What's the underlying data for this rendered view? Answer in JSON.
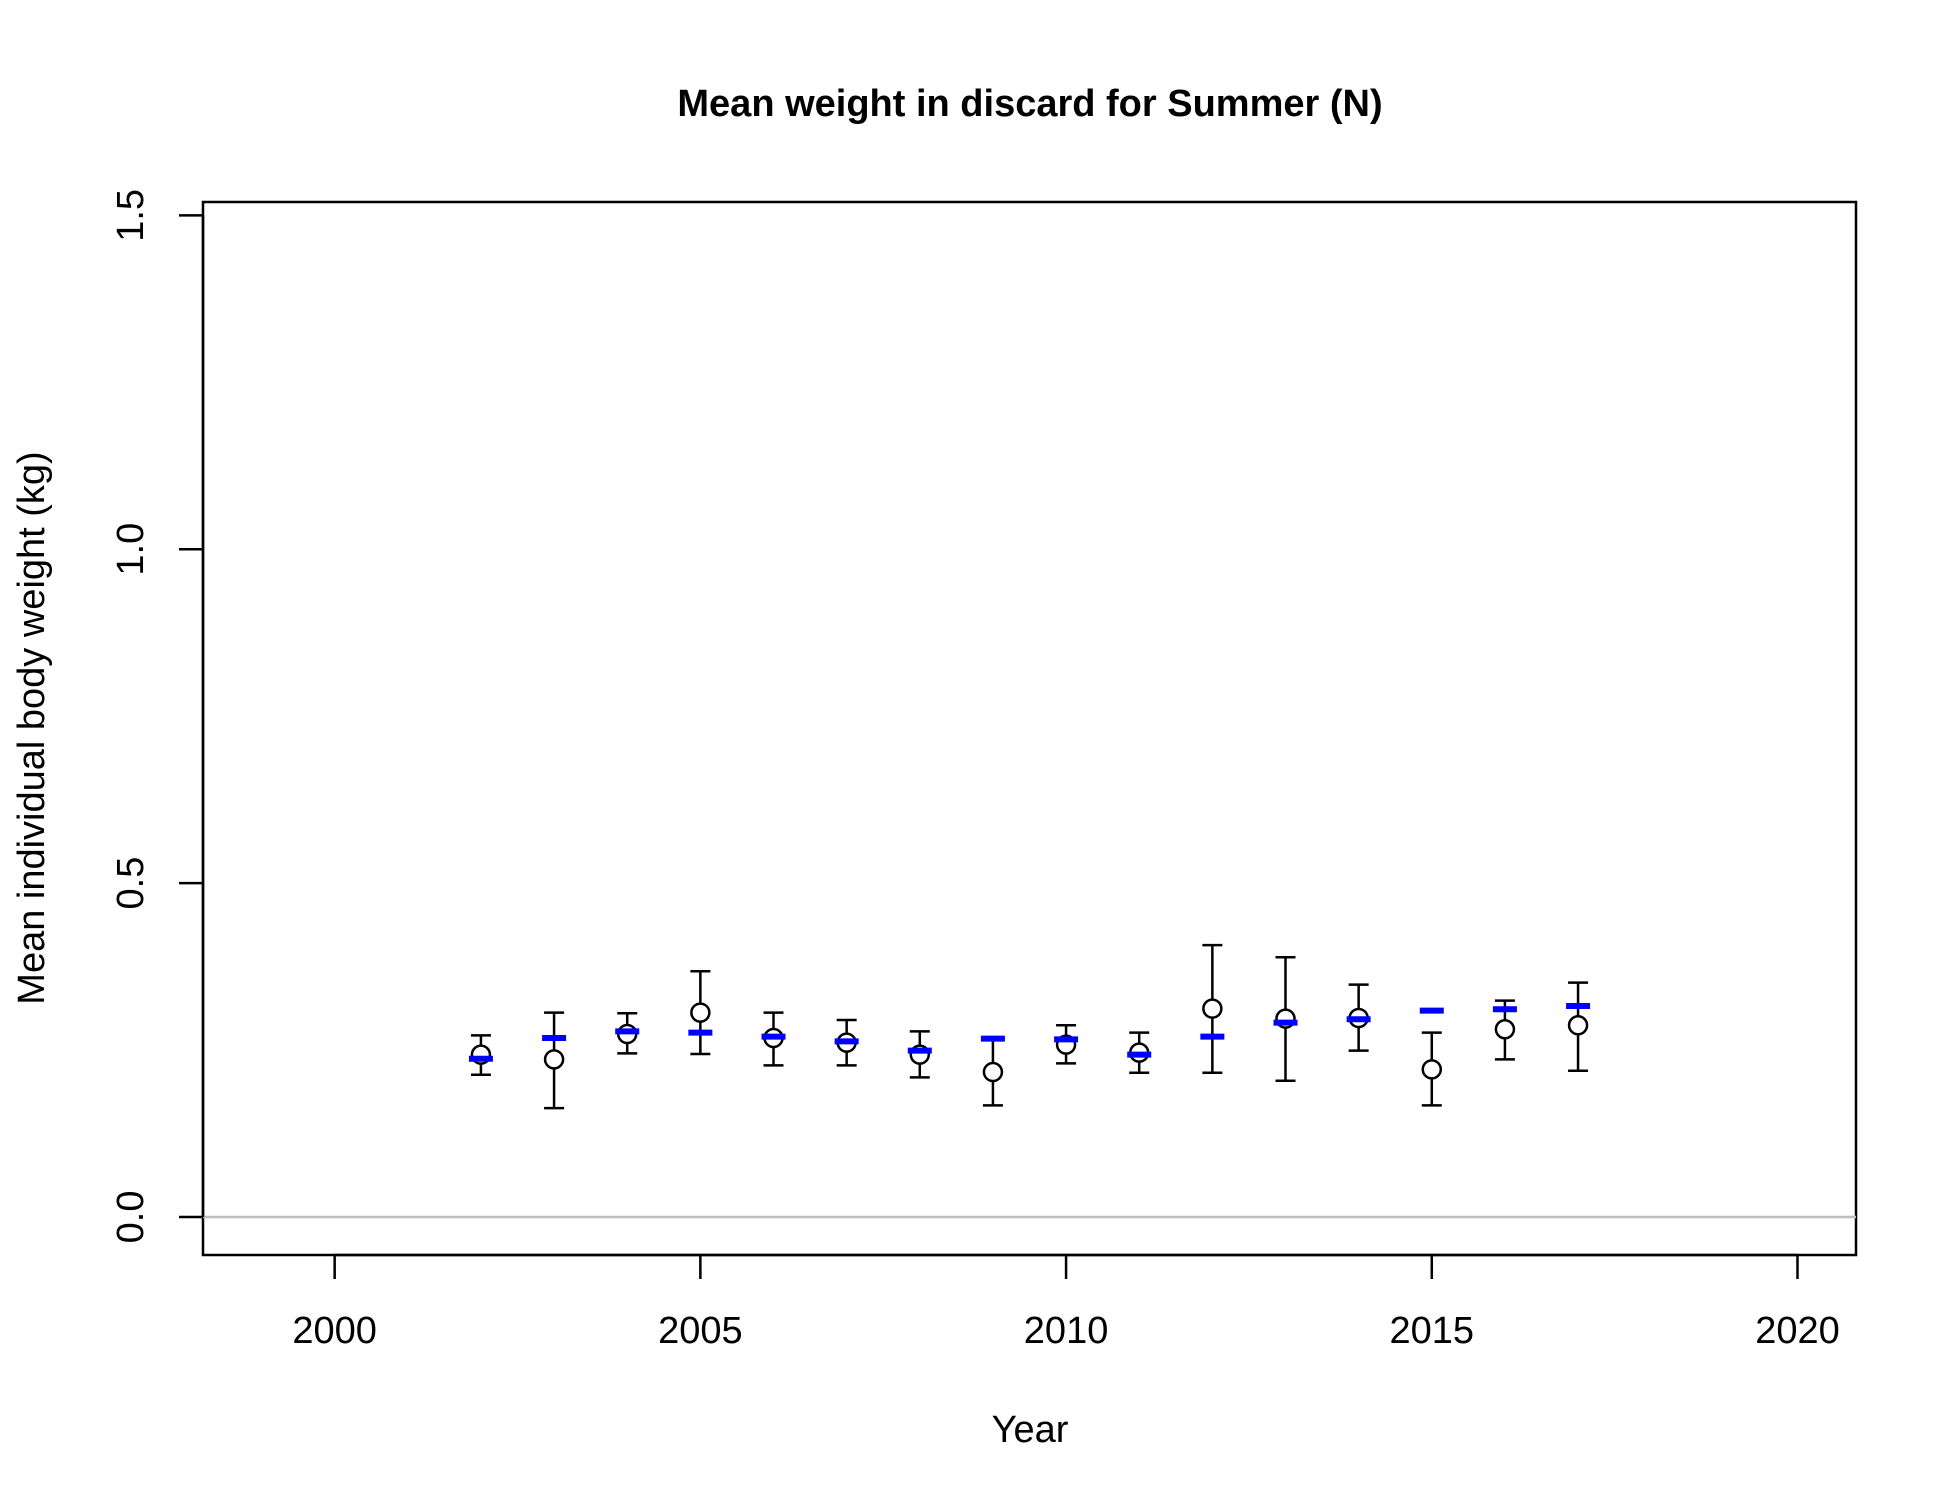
{
  "chart_data": {
    "type": "scatter",
    "title": "Mean weight in discard for Summer (N)",
    "xlabel": "Year",
    "ylabel": "Mean individual body weight (kg)",
    "xlim": [
      1998.2,
      2020.8
    ],
    "ylim": [
      -0.057,
      1.52
    ],
    "x_ticks": [
      2000,
      2005,
      2010,
      2015,
      2020
    ],
    "y_ticks": [
      0.0,
      0.5,
      1.0,
      1.5
    ],
    "x_tick_labels": [
      "2000",
      "2005",
      "2010",
      "2015",
      "2020"
    ],
    "y_tick_labels": [
      "0.0",
      "0.5",
      "1.0",
      "1.5"
    ],
    "grid": false,
    "reference_line": {
      "y": 0,
      "color": "#bebebe"
    },
    "observed": {
      "marker": "open-circle",
      "color": "#000000",
      "points": [
        {
          "x": 2002,
          "y": 0.243,
          "lo": 0.213,
          "hi": 0.272
        },
        {
          "x": 2003,
          "y": 0.236,
          "lo": 0.163,
          "hi": 0.306
        },
        {
          "x": 2004,
          "y": 0.274,
          "lo": 0.245,
          "hi": 0.305
        },
        {
          "x": 2005,
          "y": 0.306,
          "lo": 0.244,
          "hi": 0.368
        },
        {
          "x": 2006,
          "y": 0.268,
          "lo": 0.227,
          "hi": 0.306
        },
        {
          "x": 2007,
          "y": 0.261,
          "lo": 0.227,
          "hi": 0.295
        },
        {
          "x": 2008,
          "y": 0.243,
          "lo": 0.209,
          "hi": 0.278
        },
        {
          "x": 2009,
          "y": 0.217,
          "lo": 0.167,
          "hi": 0.267
        },
        {
          "x": 2010,
          "y": 0.258,
          "lo": 0.23,
          "hi": 0.287
        },
        {
          "x": 2011,
          "y": 0.246,
          "lo": 0.216,
          "hi": 0.276
        },
        {
          "x": 2012,
          "y": 0.312,
          "lo": 0.216,
          "hi": 0.407
        },
        {
          "x": 2013,
          "y": 0.297,
          "lo": 0.204,
          "hi": 0.389
        },
        {
          "x": 2014,
          "y": 0.298,
          "lo": 0.249,
          "hi": 0.348
        },
        {
          "x": 2015,
          "y": 0.221,
          "lo": 0.167,
          "hi": 0.276
        },
        {
          "x": 2016,
          "y": 0.281,
          "lo": 0.236,
          "hi": 0.324
        },
        {
          "x": 2017,
          "y": 0.287,
          "lo": 0.219,
          "hi": 0.351
        }
      ]
    },
    "fitted": {
      "marker": "horizontal-dash",
      "color": "#0000ff",
      "points": [
        {
          "x": 2002,
          "y": 0.237
        },
        {
          "x": 2003,
          "y": 0.268
        },
        {
          "x": 2004,
          "y": 0.278
        },
        {
          "x": 2005,
          "y": 0.276
        },
        {
          "x": 2006,
          "y": 0.27
        },
        {
          "x": 2007,
          "y": 0.263
        },
        {
          "x": 2008,
          "y": 0.249
        },
        {
          "x": 2009,
          "y": 0.267
        },
        {
          "x": 2010,
          "y": 0.266
        },
        {
          "x": 2011,
          "y": 0.243
        },
        {
          "x": 2012,
          "y": 0.27
        },
        {
          "x": 2013,
          "y": 0.291
        },
        {
          "x": 2014,
          "y": 0.296
        },
        {
          "x": 2015,
          "y": 0.309
        },
        {
          "x": 2016,
          "y": 0.311
        },
        {
          "x": 2017,
          "y": 0.316
        }
      ]
    }
  }
}
